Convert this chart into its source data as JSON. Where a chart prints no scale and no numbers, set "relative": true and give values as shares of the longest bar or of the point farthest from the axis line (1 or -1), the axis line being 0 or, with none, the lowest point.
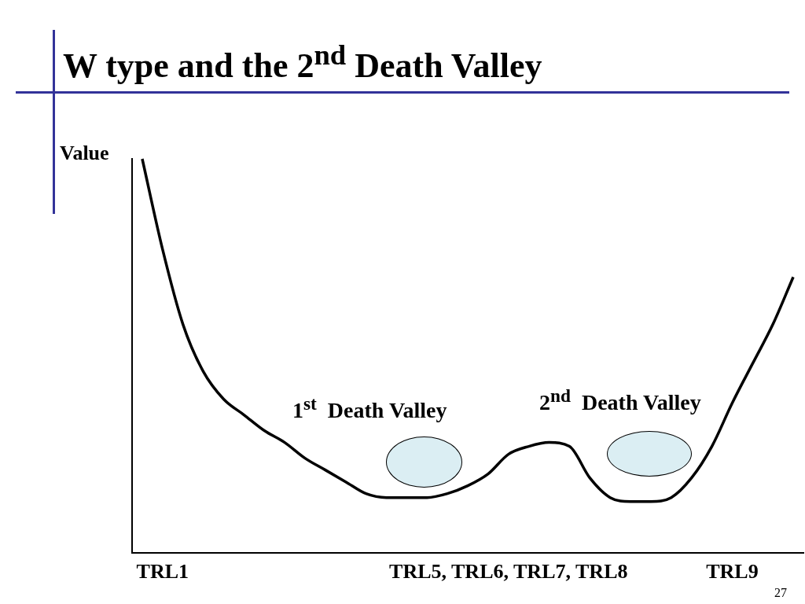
{
  "chart_data": {
    "type": "line",
    "title": "W type and the 2$^{nd}$ Death Valley",
    "ylabel": "Value",
    "relative": true,
    "grid": false,
    "legend": false,
    "marker": "none",
    "line_style": "solid",
    "tick_labels": "x",
    "categories": [
      null,
      "TRL1",
      null,
      null,
      null,
      null,
      null,
      null,
      null,
      null,
      null,
      null,
      null,
      null,
      null,
      null,
      null,
      null,
      "TRL5, TRL6, TRL7, TRL8",
      null,
      null,
      null,
      null,
      null,
      null,
      null,
      null,
      null,
      null,
      "TRL9",
      null,
      null,
      null
    ],
    "series": [
      {
        "color": "#000000",
        "values": [
          1.0,
          0.77,
          0.58,
          0.46,
          0.39,
          0.35,
          0.31,
          0.28,
          0.24,
          0.21,
          0.18,
          0.15,
          0.14,
          0.14,
          0.14,
          0.15,
          0.17,
          0.2,
          0.25,
          0.27,
          0.28,
          0.27,
          0.19,
          0.14,
          0.13,
          0.13,
          0.14,
          0.19,
          0.27,
          0.38,
          0.48,
          0.58,
          0.7
        ]
      }
    ],
    "annotations": [
      "1$^{st}$  Death Valley",
      "2$^{nd}$  Death Valley",
      "27"
    ]
  }
}
